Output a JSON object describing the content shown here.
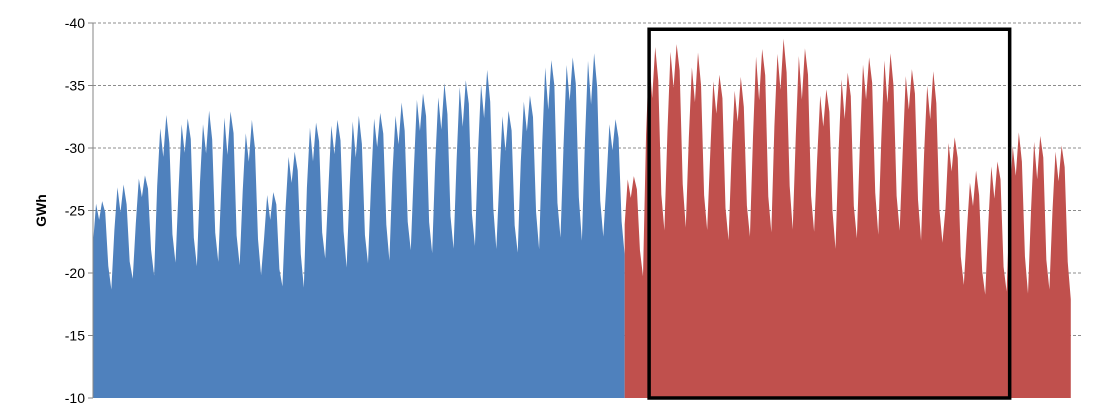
{
  "chart_data": {
    "type": "area",
    "title": "",
    "xlabel": "",
    "ylabel": "GWh",
    "ylim": [
      -10,
      -40
    ],
    "y_ticks": [
      -40,
      -35,
      -30,
      -25,
      -20,
      -15,
      -10
    ],
    "y_tick_labels": [
      "-40",
      "-35",
      "-30",
      "-25",
      "-20",
      "-15",
      "-10"
    ],
    "y_axis_inverted": true,
    "grid": true,
    "x_tick_labels": false,
    "units_per_week": 7,
    "series": [
      {
        "color": "#4f81bd",
        "start_index": 0,
        "weekly_pattern": {
          "weekday_low": [
            22.5,
            23.0,
            23.5,
            24.0,
            24.0
          ],
          "weekend_low": [
            19.5,
            19.0
          ],
          "weekday_high_offsets": [
            -2.0,
            0.0,
            0.5,
            0.0,
            -1.5
          ],
          "weekend_high": [
            24.5,
            23.5
          ]
        },
        "weekly_peaks": [
          26.0,
          27.0,
          28.0,
          32.5,
          32.5,
          32.8,
          33.0,
          32.0,
          26.5,
          30.0,
          32.0,
          32.5,
          32.5,
          33.0,
          33.5,
          34.5,
          35.0,
          35.5,
          36.0,
          33.0,
          34.5,
          37.0,
          37.5,
          37.5,
          32.5
        ],
        "weekly_troughs": [
          18.5,
          19.0,
          19.5,
          20.0,
          20.0,
          20.0,
          20.0,
          19.5,
          18.5,
          18.5,
          20.5,
          20.0,
          20.0,
          20.5,
          21.0,
          21.0,
          21.0,
          21.5,
          21.5,
          21.0,
          21.5,
          22.0,
          22.0,
          22.0,
          21.0
        ]
      },
      {
        "color": "#c0504d",
        "start_index": 175,
        "weekly_peaks": [
          28.0,
          38.0,
          38.5,
          37.5,
          36.0,
          35.5,
          38.0,
          38.5,
          38.0,
          35.0,
          36.0,
          37.5,
          37.5,
          36.5,
          36.0,
          31.0,
          28.0,
          29.0,
          31.0,
          31.0,
          30.5
        ],
        "weekly_troughs": [
          19.5,
          22.5,
          23.0,
          22.5,
          22.0,
          22.0,
          22.5,
          23.0,
          22.5,
          21.5,
          22.0,
          22.5,
          22.5,
          22.0,
          21.5,
          18.5,
          17.5,
          18.0,
          18.0,
          18.0,
          17.5
        ]
      }
    ],
    "highlight_box": {
      "x_start_index": 182,
      "x_end_index": 300,
      "y_top": -39.5,
      "y_bottom": -10
    },
    "total_points": 325
  }
}
